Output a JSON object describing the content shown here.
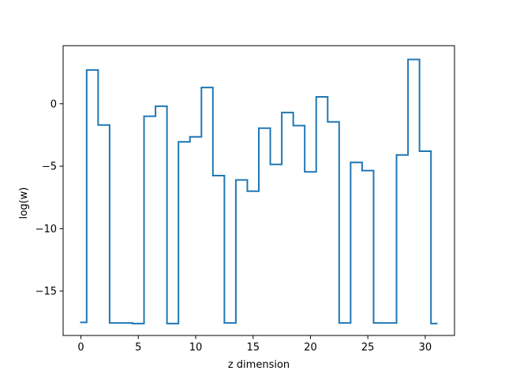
{
  "chart_data": {
    "type": "line",
    "drawstyle": "steps-mid",
    "title": "",
    "xlabel": "z dimension",
    "ylabel": "log(w)",
    "xlim": [
      -1.55,
      32.55
    ],
    "ylim": [
      -18.55,
      4.65
    ],
    "xticks": [
      0,
      5,
      10,
      15,
      20,
      25,
      30
    ],
    "xtick_labels": [
      "0",
      "5",
      "10",
      "15",
      "20",
      "25",
      "30"
    ],
    "yticks": [
      -15,
      -10,
      -5,
      0
    ],
    "ytick_labels": [
      "−15",
      "−10",
      "−5",
      "0"
    ],
    "grid": false,
    "legend": false,
    "series": [
      {
        "color": "#1f77b4",
        "x": [
          0,
          1,
          2,
          3,
          4,
          5,
          6,
          7,
          8,
          9,
          10,
          11,
          12,
          13,
          14,
          15,
          16,
          17,
          18,
          19,
          20,
          21,
          22,
          23,
          24,
          25,
          26,
          27,
          28,
          29,
          30,
          31
        ],
        "values": [
          -17.5,
          2.7,
          -1.7,
          -17.55,
          -17.55,
          -17.6,
          -1.0,
          -0.2,
          -17.6,
          -3.05,
          -2.65,
          1.3,
          -5.75,
          -17.55,
          -6.1,
          -7.0,
          -1.95,
          -4.85,
          -0.7,
          -1.75,
          -5.45,
          0.55,
          -1.45,
          -17.55,
          -4.7,
          -5.35,
          -17.55,
          -17.55,
          -4.1,
          3.55,
          -3.8,
          -17.6
        ]
      }
    ]
  }
}
